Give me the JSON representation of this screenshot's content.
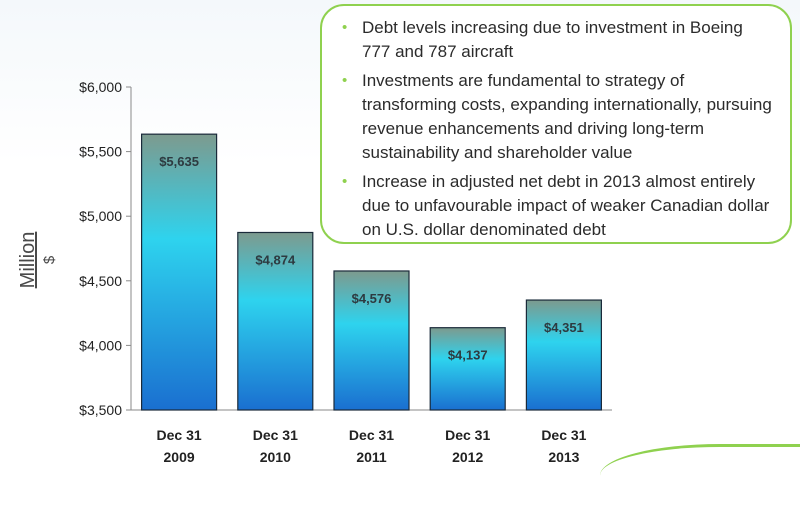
{
  "chart_data": {
    "type": "bar",
    "categories": [
      "Dec 31\n2009",
      "Dec 31\n2010",
      "Dec 31\n2011",
      "Dec 31\n2012",
      "Dec 31\n2013"
    ],
    "values": [
      5635,
      4874,
      4576,
      4137,
      4351
    ],
    "data_labels": [
      "$5,635",
      "$4,874",
      "$4,576",
      "$4,137",
      "$4,351"
    ],
    "ylim": [
      3500,
      6000
    ],
    "yticks": [
      3500,
      4000,
      4500,
      5000,
      5500,
      6000
    ],
    "ytick_labels": [
      "$3,500",
      "$4,000",
      "$4,500",
      "$5,000",
      "$5,500",
      "$6,000"
    ],
    "ylabel_line1": "Million",
    "ylabel_line2": "$",
    "grid": false,
    "colors": {
      "bar_top": "#7d9a8e",
      "bar_mid": "#2ed3ee",
      "bar_bottom": "#1a6fd0",
      "bar_edge": "#1a2a3a",
      "axis": "#8a8a8a",
      "text": "#222222",
      "label": "#2d3a40"
    }
  },
  "callout": {
    "border_color": "#8fd14f",
    "bullets": [
      "Debt levels increasing due to investment in Boeing 777 and 787 aircraft",
      "Investments are fundamental to strategy of transforming costs, expanding internationally, pursuing revenue enhancements and driving long-term sustainability and shareholder value",
      "Increase in adjusted net debt in 2013 almost entirely due to unfavourable impact of weaker Canadian dollar on U.S. dollar denominated debt"
    ]
  }
}
